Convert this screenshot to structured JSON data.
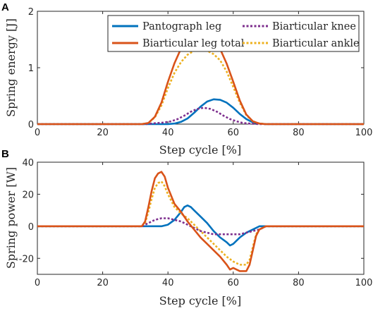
{
  "chart_data": [
    {
      "panel": "A",
      "type": "line",
      "xlabel": "Step cycle [%]",
      "ylabel": "Spring energy [J]",
      "xlim": [
        0,
        100
      ],
      "ylim": [
        0,
        2
      ],
      "xticks": [
        "0",
        "20",
        "40",
        "60",
        "80",
        "100"
      ],
      "yticks": [
        "0",
        "1",
        "2"
      ],
      "grid": false,
      "legend_position": "top-right",
      "legend_columns": 2,
      "series": [
        {
          "name": "Pantograph leg",
          "color": "#0072BD",
          "style": "solid",
          "x": [
            0,
            30,
            40,
            42,
            44,
            46,
            48,
            50,
            52,
            54,
            56,
            58,
            60,
            62,
            64,
            66,
            68,
            70,
            100
          ],
          "y": [
            0,
            0,
            0,
            0.01,
            0.04,
            0.1,
            0.2,
            0.31,
            0.4,
            0.44,
            0.43,
            0.38,
            0.29,
            0.18,
            0.09,
            0.03,
            0.01,
            0,
            0
          ]
        },
        {
          "name": "Biarticular leg total",
          "color": "#D95319",
          "style": "solid",
          "x": [
            0,
            32,
            34,
            36,
            38,
            40,
            42,
            44,
            46,
            48,
            50,
            52,
            54,
            56,
            58,
            60,
            62,
            64,
            66,
            68,
            70,
            100
          ],
          "y": [
            0,
            0,
            0.02,
            0.13,
            0.38,
            0.75,
            1.08,
            1.34,
            1.5,
            1.58,
            1.6,
            1.58,
            1.5,
            1.33,
            1.07,
            0.75,
            0.42,
            0.17,
            0.05,
            0.01,
            0,
            0
          ]
        },
        {
          "name": "Biarticular knee",
          "color": "#7E2F8E",
          "style": "dotted",
          "x": [
            0,
            33,
            35,
            37,
            39,
            41,
            43,
            45,
            47,
            49,
            51,
            53,
            55,
            57,
            59,
            61,
            63,
            65,
            68,
            100
          ],
          "y": [
            0,
            0,
            0.01,
            0.02,
            0.03,
            0.05,
            0.09,
            0.15,
            0.22,
            0.27,
            0.29,
            0.27,
            0.22,
            0.15,
            0.09,
            0.05,
            0.02,
            0.01,
            0,
            0
          ]
        },
        {
          "name": "Biarticular ankle",
          "color": "#EDB120",
          "style": "dotted",
          "x": [
            0,
            32,
            34,
            36,
            38,
            40,
            42,
            44,
            46,
            48,
            50,
            52,
            54,
            56,
            58,
            60,
            62,
            64,
            66,
            68,
            70,
            100
          ],
          "y": [
            0,
            0,
            0.02,
            0.12,
            0.33,
            0.64,
            0.91,
            1.1,
            1.23,
            1.3,
            1.32,
            1.3,
            1.24,
            1.13,
            0.93,
            0.66,
            0.38,
            0.16,
            0.05,
            0.01,
            0,
            0
          ]
        }
      ]
    },
    {
      "panel": "B",
      "type": "line",
      "xlabel": "Step cycle [%]",
      "ylabel": "Spring power [W]",
      "xlim": [
        0,
        100
      ],
      "ylim": [
        -30,
        40
      ],
      "xticks": [
        "0",
        "20",
        "40",
        "60",
        "80",
        "100"
      ],
      "yticks": [
        "-20",
        "0",
        "20",
        "40"
      ],
      "grid": false,
      "series": [
        {
          "name": "Pantograph leg",
          "color": "#0072BD",
          "style": "solid",
          "x": [
            0,
            38,
            40,
            42,
            44,
            45,
            46,
            47,
            48,
            50,
            52,
            54,
            56,
            58,
            59,
            60,
            62,
            64,
            66,
            68,
            70,
            100
          ],
          "y": [
            0,
            0,
            1,
            4,
            9,
            12,
            13,
            12,
            10,
            6,
            2,
            -3,
            -7,
            -10,
            -12,
            -11,
            -7,
            -4,
            -2,
            0,
            0,
            0
          ]
        },
        {
          "name": "Biarticular leg total",
          "color": "#D95319",
          "style": "solid",
          "x": [
            0,
            32,
            33,
            34,
            35,
            36,
            37,
            38,
            39,
            40,
            42,
            44,
            46,
            48,
            50,
            52,
            54,
            56,
            58,
            59,
            60,
            62,
            64,
            65,
            66,
            67,
            68,
            70,
            100
          ],
          "y": [
            0,
            0,
            3,
            12,
            22,
            30,
            33,
            34,
            31,
            24,
            14,
            9,
            3,
            -2,
            -7,
            -11,
            -15,
            -19,
            -24,
            -27,
            -26,
            -28,
            -28,
            -24,
            -15,
            -6,
            -2,
            0,
            0
          ]
        },
        {
          "name": "Biarticular knee",
          "color": "#7E2F8E",
          "style": "dotted",
          "x": [
            0,
            32,
            34,
            36,
            38,
            40,
            42,
            44,
            46,
            48,
            50,
            52,
            54,
            56,
            58,
            60,
            62,
            64,
            66,
            68,
            70,
            100
          ],
          "y": [
            0,
            0,
            2,
            4,
            5,
            5,
            4,
            3,
            1,
            -1,
            -3,
            -4,
            -5,
            -5,
            -5,
            -5,
            -5,
            -4,
            -3,
            -2,
            0,
            0
          ]
        },
        {
          "name": "Biarticular ankle",
          "color": "#EDB120",
          "style": "dotted",
          "x": [
            0,
            32,
            33,
            34,
            35,
            36,
            37,
            38,
            39,
            40,
            42,
            44,
            46,
            48,
            50,
            52,
            54,
            56,
            58,
            60,
            62,
            64,
            65,
            66,
            67,
            68,
            70,
            100
          ],
          "y": [
            0,
            0,
            2,
            9,
            17,
            24,
            27,
            28,
            25,
            20,
            12,
            8,
            5,
            1,
            -3,
            -7,
            -11,
            -15,
            -19,
            -22,
            -24,
            -24,
            -21,
            -13,
            -5,
            -2,
            0,
            0
          ]
        }
      ]
    }
  ]
}
